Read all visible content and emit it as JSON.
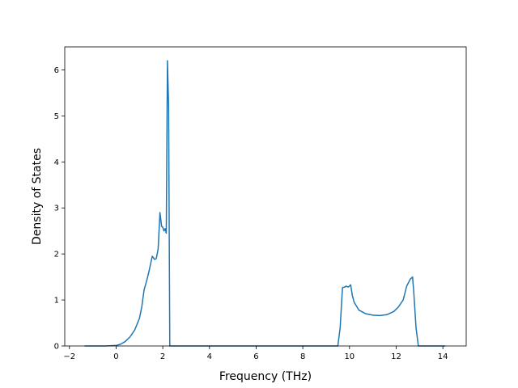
{
  "chart_data": {
    "type": "line",
    "title": "",
    "xlabel": "Frequency (THz)",
    "ylabel": "Density of States",
    "xlim": [
      -2.2,
      15.0
    ],
    "ylim": [
      0,
      6.5
    ],
    "xticks": [
      -2,
      0,
      2,
      4,
      6,
      8,
      10,
      12,
      14
    ],
    "xtick_labels": [
      "−2",
      "0",
      "2",
      "4",
      "6",
      "8",
      "10",
      "12",
      "14"
    ],
    "yticks": [
      0,
      1,
      2,
      3,
      4,
      5,
      6
    ],
    "ytick_labels": [
      "0",
      "1",
      "2",
      "3",
      "4",
      "5",
      "6"
    ],
    "grid": false,
    "legend": "none",
    "line_color": "#1f77b4",
    "series": [
      {
        "x": [
          -1.35,
          -0.5,
          0.0,
          0.2,
          0.4,
          0.6,
          0.8,
          1.0,
          1.1,
          1.2,
          1.3,
          1.4,
          1.55,
          1.65,
          1.72,
          1.8,
          1.88,
          1.95,
          2.0,
          2.05,
          2.1,
          2.15,
          2.2,
          2.25,
          2.3,
          2.37,
          2.42,
          2.5,
          4.0,
          6.0,
          8.0,
          9.5,
          9.6,
          9.7,
          9.8,
          9.85,
          9.95,
          10.05,
          10.12,
          10.2,
          10.4,
          10.7,
          11.0,
          11.3,
          11.6,
          11.9,
          12.1,
          12.3,
          12.45,
          12.6,
          12.7,
          12.75,
          12.85,
          12.95,
          13.5,
          14.1
        ],
        "y": [
          0,
          0,
          0.01,
          0.04,
          0.1,
          0.2,
          0.35,
          0.6,
          0.85,
          1.22,
          1.4,
          1.6,
          1.95,
          1.88,
          1.9,
          2.1,
          2.9,
          2.6,
          2.58,
          2.5,
          2.55,
          2.45,
          6.2,
          5.2,
          0.0,
          0.0,
          0.0,
          0.0,
          0.0,
          0.0,
          0.0,
          0.0,
          0.4,
          1.27,
          1.28,
          1.3,
          1.28,
          1.33,
          1.1,
          0.95,
          0.78,
          0.7,
          0.67,
          0.66,
          0.68,
          0.75,
          0.85,
          1.0,
          1.3,
          1.45,
          1.5,
          1.2,
          0.4,
          0.0,
          0.0,
          0.0
        ]
      }
    ]
  }
}
